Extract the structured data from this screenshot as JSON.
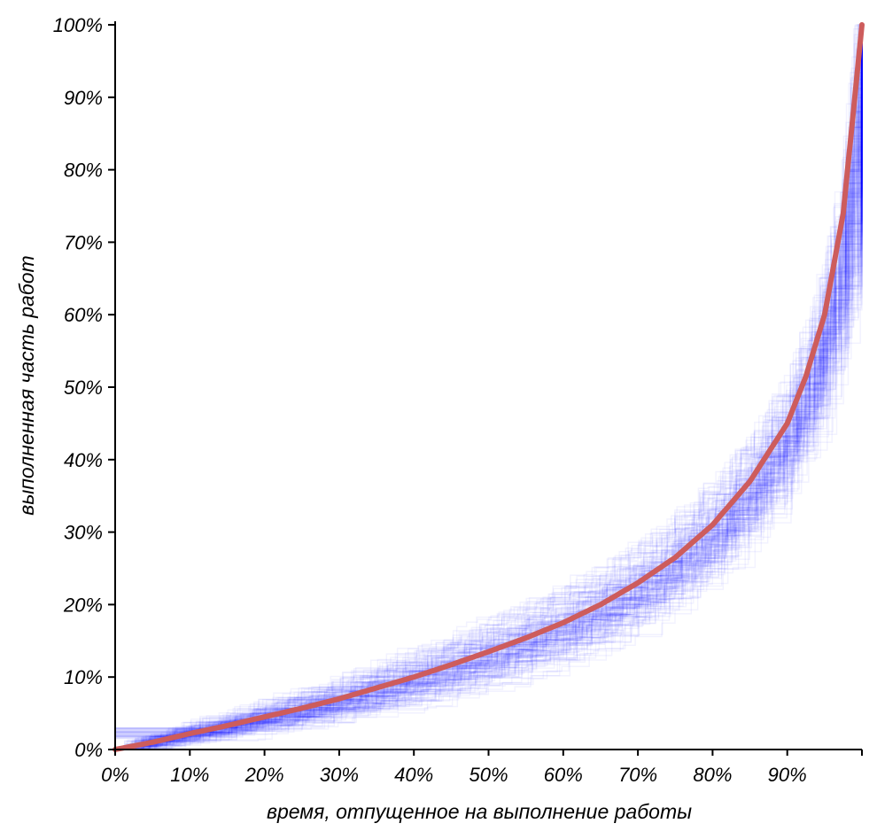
{
  "chart_data": {
    "type": "line",
    "xlabel": "время, отпущенное на выполнение работы",
    "ylabel": "выполненная часть работ",
    "x_ticks": [
      "0%",
      "10%",
      "20%",
      "30%",
      "40%",
      "50%",
      "60%",
      "70%",
      "80%",
      "90%"
    ],
    "y_ticks": [
      "0%",
      "10%",
      "20%",
      "30%",
      "40%",
      "50%",
      "60%",
      "70%",
      "80%",
      "90%",
      "100%"
    ],
    "xlim": [
      0,
      100
    ],
    "ylim": [
      0,
      100
    ],
    "grid": false,
    "legend": "none",
    "colors": {
      "mean_curve": "#cd5c5c",
      "simulations": "#0000ff",
      "axis": "#000000"
    },
    "simulation_runs": 180,
    "simulation_opacity": 0.05,
    "series": [
      {
        "role": "mean",
        "x": [
          0,
          5,
          10,
          15,
          20,
          25,
          30,
          35,
          40,
          45,
          50,
          55,
          60,
          65,
          70,
          75,
          80,
          85,
          90,
          92.5,
          95,
          97.5,
          100
        ],
        "values": [
          0,
          1.0,
          2.2,
          3.3,
          4.5,
          5.7,
          7.0,
          8.5,
          10.0,
          11.7,
          13.5,
          15.4,
          17.5,
          20.0,
          23.0,
          26.5,
          31.0,
          37.0,
          45.0,
          51.5,
          60.0,
          74.0,
          100
        ]
      }
    ]
  }
}
